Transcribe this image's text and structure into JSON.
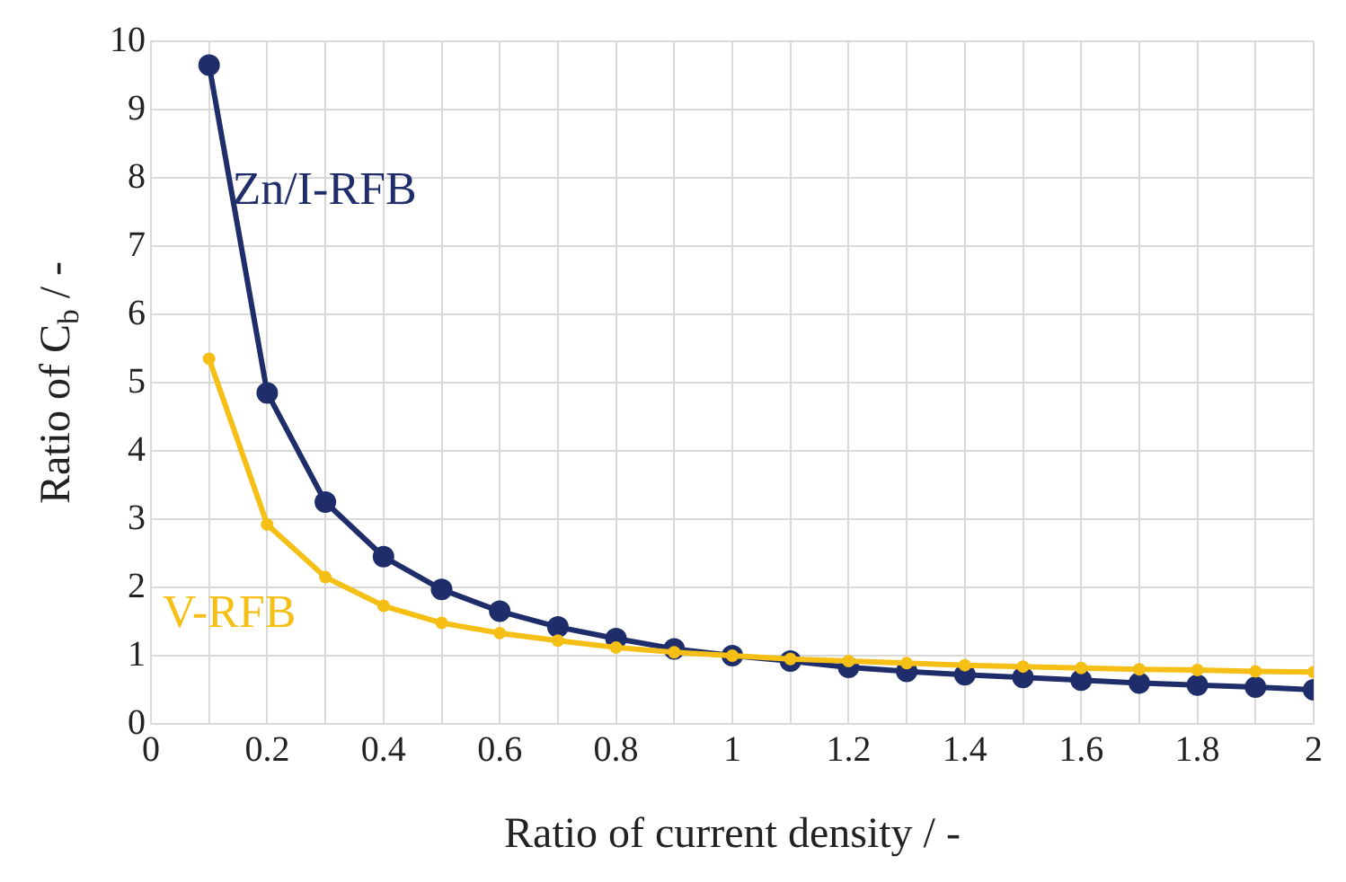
{
  "chart_data": {
    "type": "line",
    "xlabel": "Ratio of current density / -",
    "ylabel": "Ratio of C$_{b}$ / -",
    "x": [
      0.1,
      0.2,
      0.3,
      0.4,
      0.5,
      0.6,
      0.7,
      0.8,
      0.9,
      1.0,
      1.1,
      1.2,
      1.3,
      1.4,
      1.5,
      1.6,
      1.7,
      1.8,
      1.9,
      2.0
    ],
    "series": [
      {
        "name": "Zn/I-RFB",
        "color": "#1f2d6b",
        "values": [
          9.65,
          4.85,
          3.25,
          2.45,
          1.97,
          1.65,
          1.42,
          1.25,
          1.1,
          1.0,
          0.92,
          0.83,
          0.77,
          0.72,
          0.68,
          0.64,
          0.6,
          0.57,
          0.54,
          0.5
        ]
      },
      {
        "name": "V-RFB",
        "color": "#f5bf16",
        "values": [
          5.35,
          2.92,
          2.15,
          1.73,
          1.48,
          1.33,
          1.22,
          1.12,
          1.05,
          1.0,
          0.95,
          0.92,
          0.89,
          0.86,
          0.84,
          0.82,
          0.8,
          0.79,
          0.77,
          0.76
        ]
      }
    ],
    "xlim": [
      0,
      2
    ],
    "xticks": [
      0,
      {
        "value": 0.1,
        "label": null
      },
      0.2,
      {
        "value": 0.3,
        "label": null
      },
      0.4,
      {
        "value": 0.5,
        "label": null
      },
      0.6,
      {
        "value": 0.7,
        "label": null
      },
      0.8,
      {
        "value": 0.9,
        "label": null
      },
      1,
      {
        "value": 1.1,
        "label": null
      },
      1.2,
      {
        "value": 1.3,
        "label": null
      },
      1.4,
      {
        "value": 1.5,
        "label": null
      },
      1.6,
      {
        "value": 1.7,
        "label": null
      },
      1.8,
      {
        "value": 1.9,
        "label": null
      },
      2
    ],
    "ylim": [
      0,
      10
    ],
    "yticks": [
      0,
      1,
      2,
      3,
      4,
      5,
      6,
      7,
      8,
      9,
      10
    ],
    "grid": true,
    "legend": false,
    "marker": "circle",
    "line_style": "solid"
  }
}
